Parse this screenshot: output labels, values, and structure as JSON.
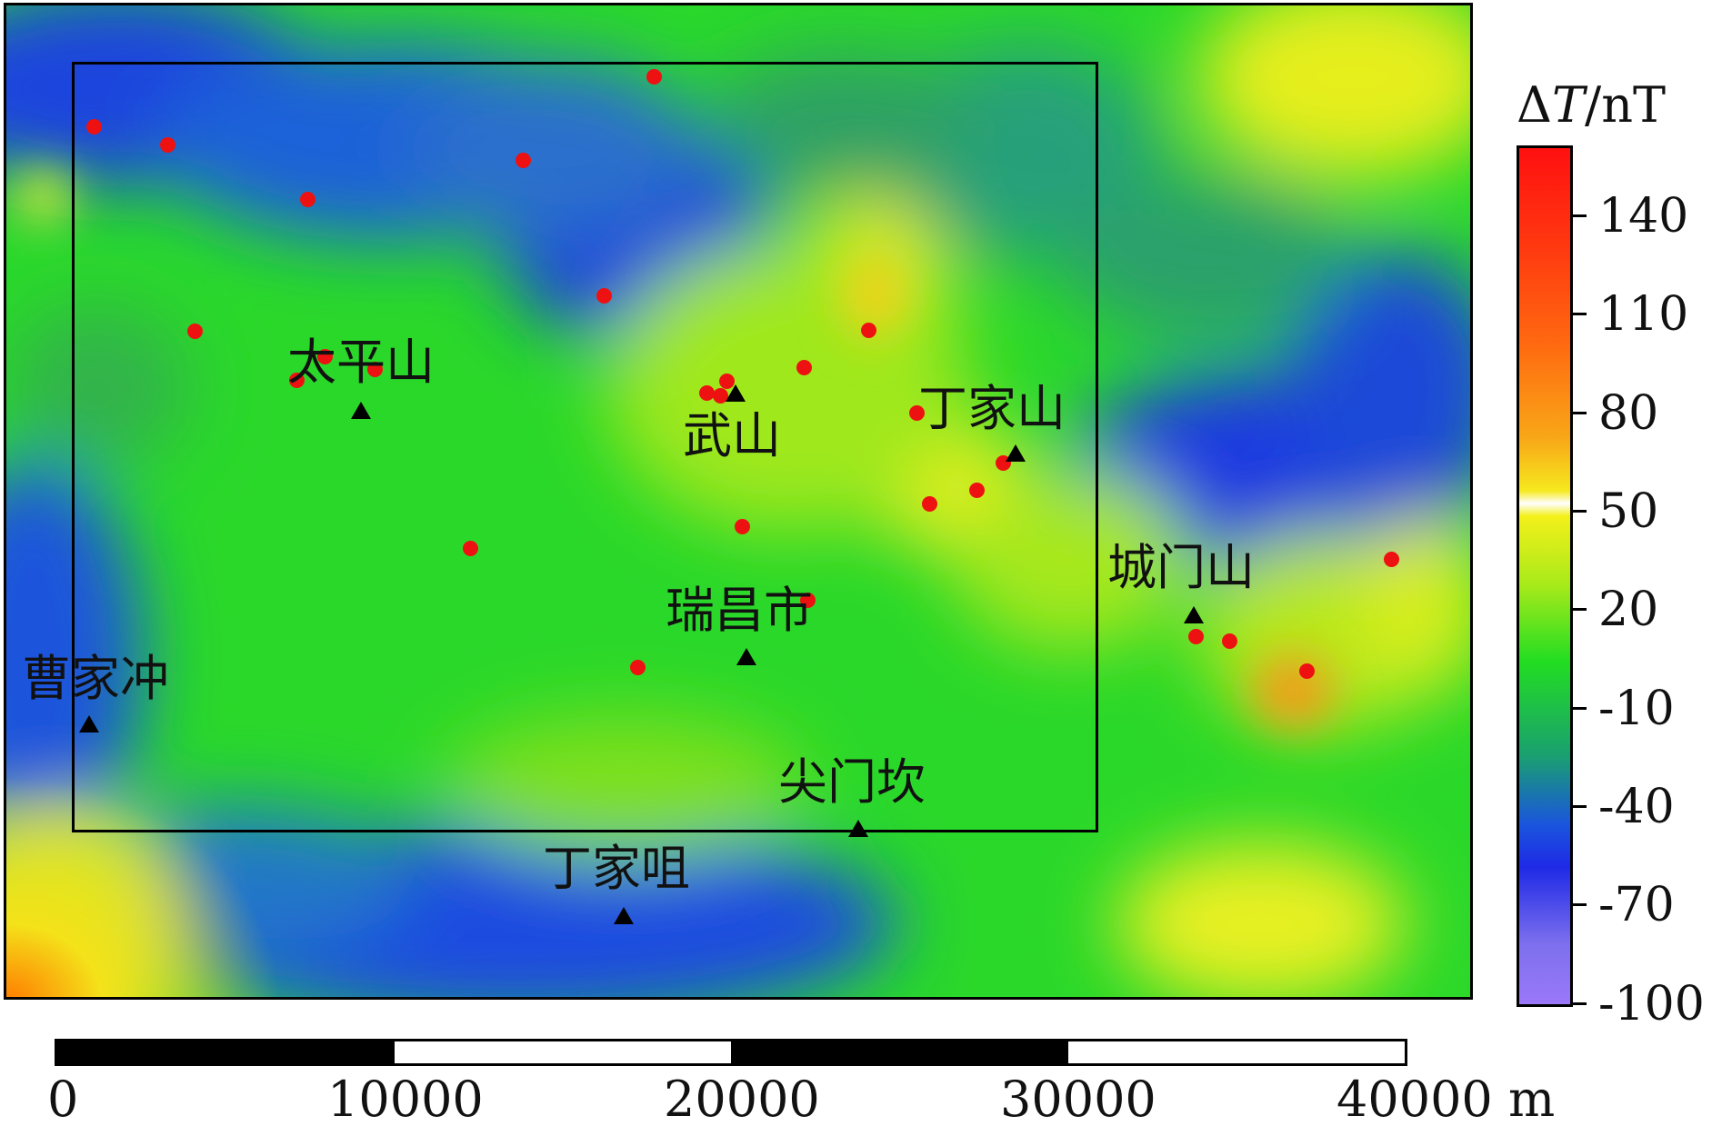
{
  "colors": {
    "deep_blue": "#1133dd",
    "blue": "#1a5ce0",
    "teal": "#1aa870",
    "green": "#22dd22",
    "yellow_green": "#b8ee1a",
    "yellow": "#f0f020",
    "orange": "#f49b1a",
    "red": "#ff1a1a",
    "sample_point": "#ee1111",
    "triangle": "#000000"
  },
  "places": [
    {
      "name": "太平山"
    },
    {
      "name": "武山"
    },
    {
      "name": "丁家山"
    },
    {
      "name": "城门山"
    },
    {
      "name": "瑞昌市"
    },
    {
      "name": "曹家冲"
    },
    {
      "name": "尖门坎"
    },
    {
      "name": "丁家咀"
    }
  ],
  "legend": {
    "title_symbol": "Δ",
    "title_var": "T",
    "title_unit": "/nT",
    "ticks": [
      "140",
      "110",
      "80",
      "50",
      "20",
      "-10",
      "-40",
      "-70",
      "-100"
    ]
  },
  "scale": {
    "labels": [
      "0",
      "10000",
      "20000",
      "30000",
      "40000 m"
    ]
  }
}
